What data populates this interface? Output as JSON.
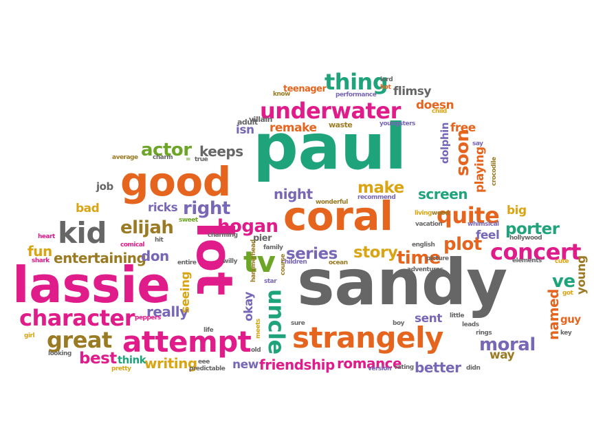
{
  "words": {
    "paul": "paul",
    "sandy": "sandy",
    "lassie": "lassie",
    "lot": "lot",
    "coral": "coral",
    "good": "good",
    "strangely": "strangely",
    "attempt": "attempt",
    "underwater": "underwater",
    "kid": "kid",
    "character": "character",
    "tv": "tv",
    "quite": "quite",
    "concert": "concert",
    "great": "great",
    "uncle": "uncle",
    "thing": "thing",
    "elijah": "elijah",
    "hogan": "hogan",
    "right": "right",
    "actor": "actor",
    "time": "time",
    "moral": "moral",
    "series": "series",
    "story": "story",
    "plot": "plot",
    "make": "make",
    "porter": "porter",
    "ve": "ve",
    "best": "best",
    "writing": "writing",
    "friendship": "friendship",
    "romance": "romance",
    "better": "better",
    "soon": "soon",
    "screen": "screen",
    "night": "night",
    "keeps": "keeps",
    "really": "really",
    "okay": "okay",
    "seeing": "seeing",
    "named": "named",
    "fun": "fun",
    "entertaining": "entertaining",
    "don": "don",
    "ricks": "ricks",
    "bad": "bad",
    "job": "job",
    "remake": "remake",
    "doesn": "doesn",
    "free": "free",
    "flimsy": "flimsy",
    "playing": "playing",
    "dolphin": "dolphin",
    "big": "big",
    "feel": "feel",
    "isn": "isn",
    "way": "way",
    "sent": "sent",
    "new": "new",
    "think": "think",
    "young": "young",
    "guy": "guy",
    "teenager": "teenager",
    "lord": "lord",
    "hot": "hot",
    "know": "know",
    "performance": "performance",
    "child": "child",
    "adult": "adult",
    "villain": "villain",
    "waste": "waste",
    "youngsters": "youngsters",
    "average": "average",
    "charm": "charm",
    "true": "true",
    "say": "say",
    "crocodile": "crocodile",
    "wonderful": "wonderful",
    "recommend": "recommend",
    "living": "living",
    "vacation": "vacation",
    "whimsical": "whimsical",
    "heart": "heart",
    "comical": "comical",
    "hit": "hit",
    "sweet": "sweet",
    "charming": "charming",
    "pier": "pier",
    "family": "family",
    "english": "english",
    "hollywood": "hollywood",
    "shark": "shark",
    "entire": "entire",
    "willy": "willy",
    "children": "children",
    "ocean": "ocean",
    "picture": "picture",
    "elements": "elements",
    "cute": "cute",
    "star": "star",
    "adventures": "adventures",
    "course": "course",
    "hammerhead": "hammerhead",
    "got": "got",
    "peppers": "peppers",
    "sure": "sure",
    "boy": "boy",
    "little": "little",
    "leads": "leads",
    "meets": "meets",
    "rings": "rings",
    "life": "life",
    "girl": "girl",
    "looking": "looking",
    "old": "old",
    "key": "key",
    "pretty": "pretty",
    "eee": "eee",
    "predictable": "predictable",
    "version": "version",
    "rating": "rating",
    "didn": "didn",
    "wood": "wood",
    "eq": "="
  }
}
